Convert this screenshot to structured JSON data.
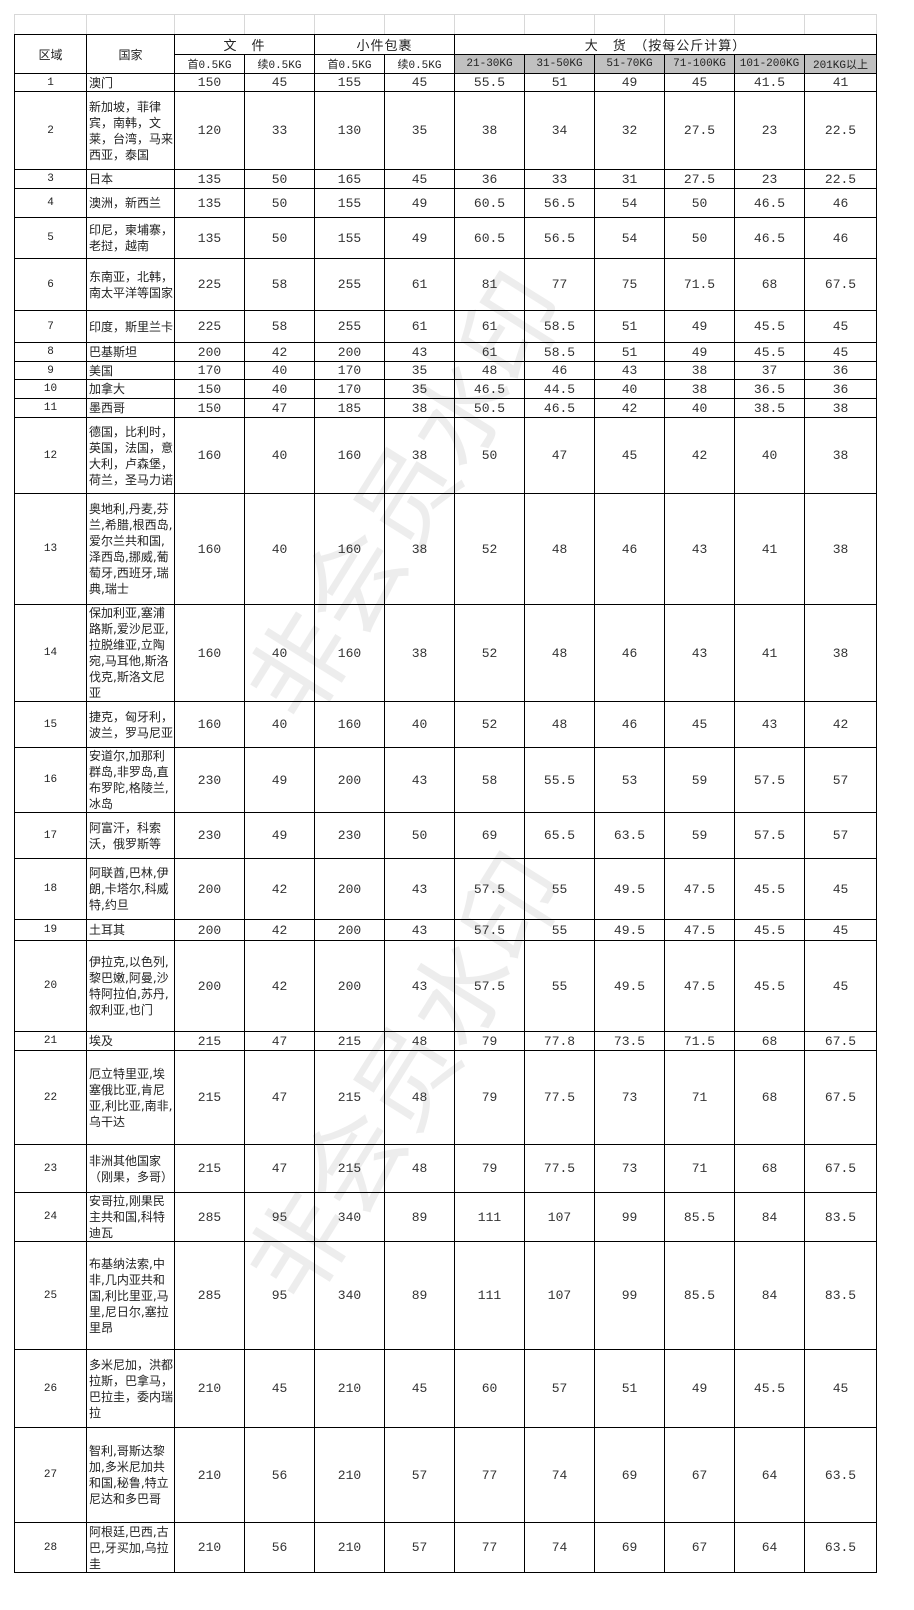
{
  "header": {
    "region": "区域",
    "country": "国家",
    "doc_group": "文　件",
    "parcel_group": "小件包裹",
    "cargo_group": "大　货　（按每公斤计算）",
    "doc_first": "首0.5KG",
    "doc_add": "续0.5KG",
    "parcel_first": "首0.5KG",
    "parcel_add": "续0.5KG",
    "cargo_bands": [
      "21-30KG",
      "31-50KG",
      "51-70KG",
      "71-100KG",
      "101-200KG",
      "201KG以上"
    ]
  },
  "colors": {
    "band_header_bg": "#c0c0c0",
    "grid": "#000000"
  },
  "watermark": "非会员水印",
  "rows": [
    {
      "zone": "1",
      "country": "澳门",
      "v": [
        "150",
        "45",
        "155",
        "45",
        "55.5",
        "51",
        "49",
        "45",
        "41.5",
        "41"
      ]
    },
    {
      "zone": "2",
      "country": "新加坡，菲律宾，南韩，文莱，台湾，马来西亚，泰国",
      "v": [
        "120",
        "33",
        "130",
        "35",
        "38",
        "34",
        "32",
        "27.5",
        "23",
        "22.5"
      ]
    },
    {
      "zone": "3",
      "country": "日本",
      "v": [
        "135",
        "50",
        "165",
        "45",
        "36",
        "33",
        "31",
        "27.5",
        "23",
        "22.5"
      ]
    },
    {
      "zone": "4",
      "country": "澳洲，新西兰",
      "v": [
        "135",
        "50",
        "155",
        "49",
        "60.5",
        "56.5",
        "54",
        "50",
        "46.5",
        "46"
      ]
    },
    {
      "zone": "5",
      "country": "印尼，柬埔寨，老挝，越南",
      "v": [
        "135",
        "50",
        "155",
        "49",
        "60.5",
        "56.5",
        "54",
        "50",
        "46.5",
        "46"
      ]
    },
    {
      "zone": "6",
      "country": "东南亚，北韩，南太平洋等国家",
      "v": [
        "225",
        "58",
        "255",
        "61",
        "81",
        "77",
        "75",
        "71.5",
        "68",
        "67.5"
      ]
    },
    {
      "zone": "7",
      "country": "印度，斯里兰卡",
      "v": [
        "225",
        "58",
        "255",
        "61",
        "61",
        "58.5",
        "51",
        "49",
        "45.5",
        "45"
      ]
    },
    {
      "zone": "8",
      "country": "巴基斯坦",
      "v": [
        "200",
        "42",
        "200",
        "43",
        "61",
        "58.5",
        "51",
        "49",
        "45.5",
        "45"
      ]
    },
    {
      "zone": "9",
      "country": "美国",
      "v": [
        "170",
        "40",
        "170",
        "35",
        "48",
        "46",
        "43",
        "38",
        "37",
        "36"
      ]
    },
    {
      "zone": "10",
      "country": "加拿大",
      "v": [
        "150",
        "40",
        "170",
        "35",
        "46.5",
        "44.5",
        "40",
        "38",
        "36.5",
        "36"
      ]
    },
    {
      "zone": "11",
      "country": "墨西哥",
      "v": [
        "150",
        "47",
        "185",
        "38",
        "50.5",
        "46.5",
        "42",
        "40",
        "38.5",
        "38"
      ]
    },
    {
      "zone": "12",
      "country": "德国，比利时，英国，法国，意大利，卢森堡，荷兰，圣马力诺",
      "v": [
        "160",
        "40",
        "160",
        "38",
        "50",
        "47",
        "45",
        "42",
        "40",
        "38"
      ]
    },
    {
      "zone": "13",
      "country": "奥地利,丹麦,芬兰,希腊,根西岛,爱尔兰共和国,泽西岛,挪威,葡萄牙,西班牙,瑞典,瑞士",
      "v": [
        "160",
        "40",
        "160",
        "38",
        "52",
        "48",
        "46",
        "43",
        "41",
        "38"
      ]
    },
    {
      "zone": "14",
      "country": "保加利亚,塞浦路斯,爱沙尼亚,拉脱维亚,立陶宛,马耳他,斯洛伐克,斯洛文尼亚",
      "v": [
        "160",
        "40",
        "160",
        "38",
        "52",
        "48",
        "46",
        "43",
        "41",
        "38"
      ]
    },
    {
      "zone": "15",
      "country": "捷克，匈牙利，波兰，罗马尼亚",
      "v": [
        "160",
        "40",
        "160",
        "40",
        "52",
        "48",
        "46",
        "45",
        "43",
        "42"
      ]
    },
    {
      "zone": "16",
      "country": "安道尔,加那利群岛,非罗岛,直布罗陀,格陵兰,冰岛",
      "v": [
        "230",
        "49",
        "200",
        "43",
        "58",
        "55.5",
        "53",
        "59",
        "57.5",
        "57"
      ]
    },
    {
      "zone": "17",
      "country": "阿富汗，科索沃，俄罗斯等",
      "v": [
        "230",
        "49",
        "230",
        "50",
        "69",
        "65.5",
        "63.5",
        "59",
        "57.5",
        "57"
      ]
    },
    {
      "zone": "18",
      "country": "阿联酋,巴林,伊朗,卡塔尔,科威特,约旦",
      "v": [
        "200",
        "42",
        "200",
        "43",
        "57.5",
        "55",
        "49.5",
        "47.5",
        "45.5",
        "45"
      ]
    },
    {
      "zone": "19",
      "country": "土耳其",
      "v": [
        "200",
        "42",
        "200",
        "43",
        "57.5",
        "55",
        "49.5",
        "47.5",
        "45.5",
        "45"
      ]
    },
    {
      "zone": "20",
      "country": "伊拉克,以色列,黎巴嫩,阿曼,沙特阿拉伯,苏丹,叙利亚,也门",
      "v": [
        "200",
        "42",
        "200",
        "43",
        "57.5",
        "55",
        "49.5",
        "47.5",
        "45.5",
        "45"
      ]
    },
    {
      "zone": "21",
      "country": "埃及",
      "v": [
        "215",
        "47",
        "215",
        "48",
        "79",
        "77.8",
        "73.5",
        "71.5",
        "68",
        "67.5"
      ]
    },
    {
      "zone": "22",
      "country": "厄立特里亚,埃塞俄比亚,肯尼亚,利比亚,南非,乌干达",
      "v": [
        "215",
        "47",
        "215",
        "48",
        "79",
        "77.5",
        "73",
        "71",
        "68",
        "67.5"
      ]
    },
    {
      "zone": "23",
      "country": "非洲其他国家（刚果，多哥）",
      "v": [
        "215",
        "47",
        "215",
        "48",
        "79",
        "77.5",
        "73",
        "71",
        "68",
        "67.5"
      ]
    },
    {
      "zone": "24",
      "country": "安哥拉,刚果民主共和国,科特迪瓦",
      "v": [
        "285",
        "95",
        "340",
        "89",
        "111",
        "107",
        "99",
        "85.5",
        "84",
        "83.5"
      ]
    },
    {
      "zone": "25",
      "country": "布基纳法索,中非,几内亚共和国,利比里亚,马里,尼日尔,塞拉里昂",
      "v": [
        "285",
        "95",
        "340",
        "89",
        "111",
        "107",
        "99",
        "85.5",
        "84",
        "83.5"
      ]
    },
    {
      "zone": "26",
      "country": "多米尼加，洪都拉斯，巴拿马，巴拉圭，委内瑞拉",
      "v": [
        "210",
        "45",
        "210",
        "45",
        "60",
        "57",
        "51",
        "49",
        "45.5",
        "45"
      ]
    },
    {
      "zone": "27",
      "country": "智利,哥斯达黎加,多米尼加共和国,秘鲁,特立尼达和多巴哥",
      "v": [
        "210",
        "56",
        "210",
        "57",
        "77",
        "74",
        "69",
        "67",
        "64",
        "63.5"
      ]
    },
    {
      "zone": "28",
      "country": "阿根廷,巴西,古巴,牙买加,乌拉圭",
      "v": [
        "210",
        "56",
        "210",
        "57",
        "77",
        "74",
        "69",
        "67",
        "64",
        "63.5"
      ]
    }
  ]
}
